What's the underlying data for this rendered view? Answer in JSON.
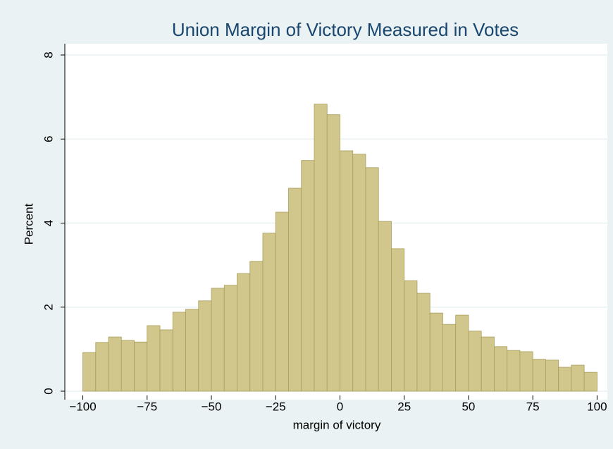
{
  "chart_data": {
    "type": "histogram",
    "title": "Union Margin of Victory Measured in Votes",
    "xlabel": "margin of victory",
    "ylabel": "Percent",
    "bins": [
      -100,
      -95,
      -90,
      -85,
      -80,
      -75,
      -70,
      -65,
      -60,
      -55,
      -50,
      -45,
      -40,
      -35,
      -30,
      -25,
      -20,
      -15,
      -10,
      -5,
      0,
      5,
      10,
      15,
      20,
      25,
      30,
      35,
      40,
      45,
      50,
      55,
      60,
      65,
      70,
      75,
      80,
      85,
      90,
      95,
      100
    ],
    "values": [
      0.92,
      1.16,
      1.29,
      1.21,
      1.17,
      1.56,
      1.46,
      1.88,
      1.95,
      2.15,
      2.45,
      2.52,
      2.8,
      3.09,
      3.76,
      4.26,
      4.83,
      5.49,
      6.83,
      6.58,
      5.72,
      5.64,
      5.32,
      4.04,
      3.39,
      2.63,
      2.33,
      1.86,
      1.59,
      1.81,
      1.43,
      1.29,
      1.06,
      0.97,
      0.94,
      0.76,
      0.74,
      0.57,
      0.62,
      0.45
    ],
    "color": "#d1c68c",
    "edgecolor": "#a99f5c",
    "xlim": [
      -107,
      104
    ],
    "ylim": [
      0,
      8
    ],
    "xticks": [
      {
        "value": -100,
        "label": "−100"
      },
      {
        "value": -75,
        "label": "−75"
      },
      {
        "value": -50,
        "label": "−50"
      },
      {
        "value": -25,
        "label": "−25"
      },
      0,
      25,
      50,
      75,
      100
    ],
    "yticks": [
      0,
      2,
      4,
      6,
      8
    ],
    "grid": true
  }
}
